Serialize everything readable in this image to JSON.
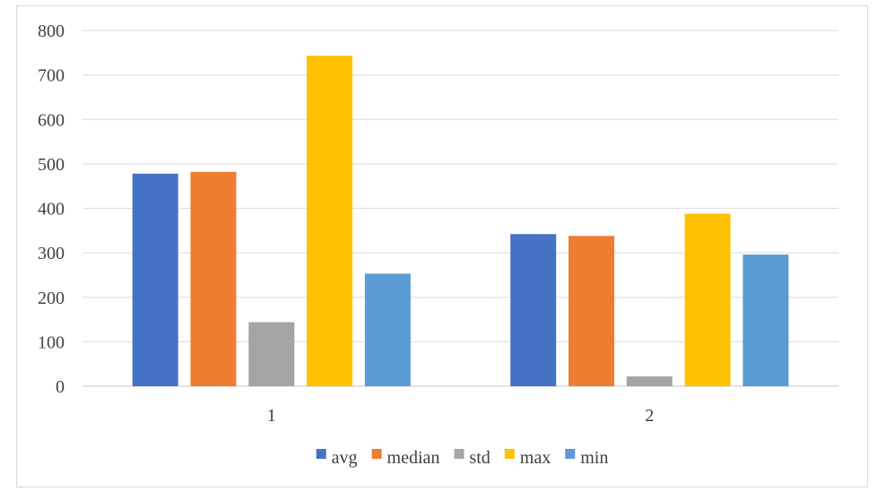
{
  "chart_data": {
    "type": "bar",
    "title": "",
    "xlabel": "",
    "ylabel": "",
    "categories": [
      "1",
      "2"
    ],
    "ylim": [
      0,
      800
    ],
    "yticks": [
      0,
      100,
      200,
      300,
      400,
      500,
      600,
      700,
      800
    ],
    "grid": true,
    "legend_position": "bottom",
    "series": [
      {
        "name": "avg",
        "color": "#4472C4",
        "values": [
          478,
          342
        ]
      },
      {
        "name": "median",
        "color": "#ED7D31",
        "values": [
          482,
          338
        ]
      },
      {
        "name": "std",
        "color": "#A5A5A5",
        "values": [
          144,
          22
        ]
      },
      {
        "name": "max",
        "color": "#FFC000",
        "values": [
          743,
          388
        ]
      },
      {
        "name": "min",
        "color": "#5B9BD5",
        "values": [
          253,
          296
        ]
      }
    ]
  }
}
